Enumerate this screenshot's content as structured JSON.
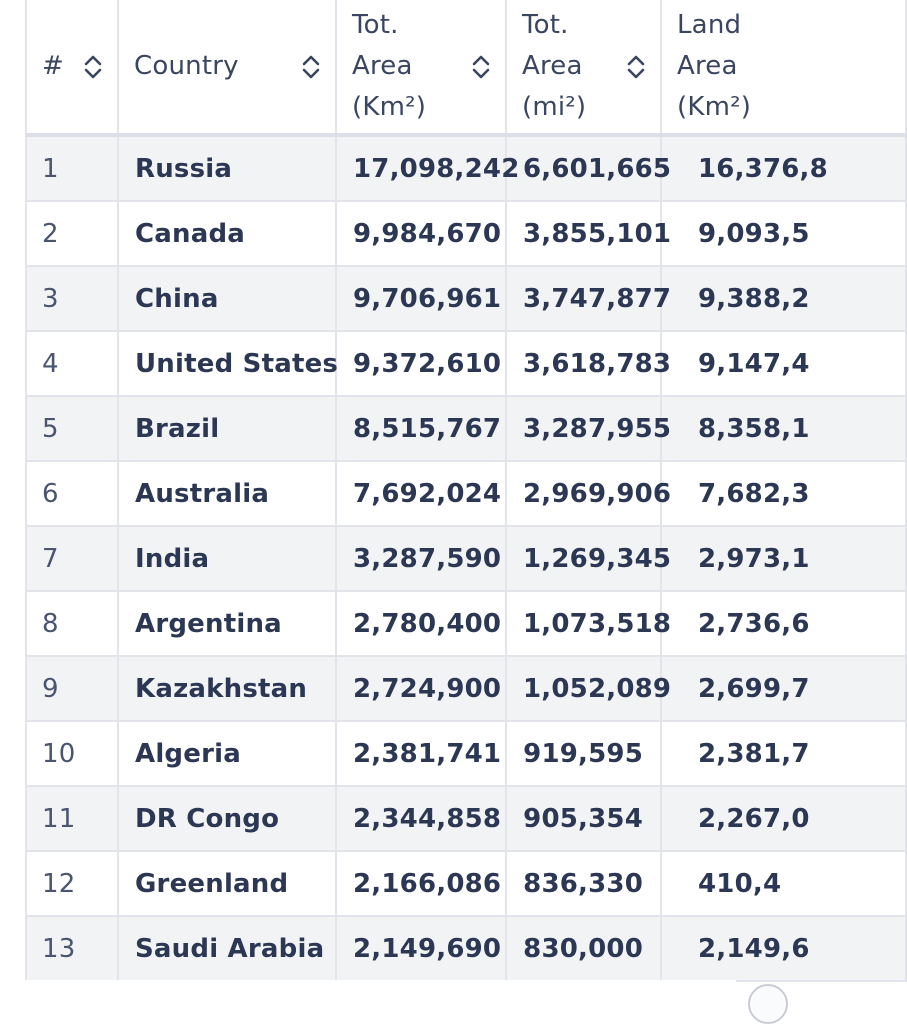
{
  "table": {
    "columns": [
      {
        "label_lines": [
          "#"
        ],
        "sortable": true
      },
      {
        "label_lines": [
          "Country"
        ],
        "sortable": true
      },
      {
        "label_lines": [
          "Tot.",
          "Area",
          "(Km²)"
        ],
        "sortable": true
      },
      {
        "label_lines": [
          "Tot.",
          "Area",
          "(mi²)"
        ],
        "sortable": true
      },
      {
        "label_lines": [
          "Land",
          "Area",
          "(Km²)"
        ],
        "sortable": true
      }
    ],
    "rows": [
      {
        "rank": "1",
        "country": "Russia",
        "tot_km2": "17,098,242",
        "tot_mi2": "6,601,665",
        "land_km2": "16,376,8"
      },
      {
        "rank": "2",
        "country": "Canada",
        "tot_km2": "9,984,670",
        "tot_mi2": "3,855,101",
        "land_km2": "9,093,5"
      },
      {
        "rank": "3",
        "country": "China",
        "tot_km2": "9,706,961",
        "tot_mi2": "3,747,877",
        "land_km2": "9,388,2"
      },
      {
        "rank": "4",
        "country": "United States",
        "tot_km2": "9,372,610",
        "tot_mi2": "3,618,783",
        "land_km2": "9,147,4"
      },
      {
        "rank": "5",
        "country": "Brazil",
        "tot_km2": "8,515,767",
        "tot_mi2": "3,287,955",
        "land_km2": "8,358,1"
      },
      {
        "rank": "6",
        "country": "Australia",
        "tot_km2": "7,692,024",
        "tot_mi2": "2,969,906",
        "land_km2": "7,682,3"
      },
      {
        "rank": "7",
        "country": "India",
        "tot_km2": "3,287,590",
        "tot_mi2": "1,269,345",
        "land_km2": "2,973,1"
      },
      {
        "rank": "8",
        "country": "Argentina",
        "tot_km2": "2,780,400",
        "tot_mi2": "1,073,518",
        "land_km2": "2,736,6"
      },
      {
        "rank": "9",
        "country": "Kazakhstan",
        "tot_km2": "2,724,900",
        "tot_mi2": "1,052,089",
        "land_km2": "2,699,7"
      },
      {
        "rank": "10",
        "country": "Algeria",
        "tot_km2": "2,381,741",
        "tot_mi2": "919,595",
        "land_km2": "2,381,7"
      },
      {
        "rank": "11",
        "country": "DR Congo",
        "tot_km2": "2,344,858",
        "tot_mi2": "905,354",
        "land_km2": "2,267,0"
      },
      {
        "rank": "12",
        "country": "Greenland",
        "tot_km2": "2,166,086",
        "tot_mi2": "836,330",
        "land_km2": "410,4"
      },
      {
        "rank": "13",
        "country": "Saudi Arabia",
        "tot_km2": "2,149,690",
        "tot_mi2": "830,000",
        "land_km2": "2,149,6"
      }
    ]
  },
  "icons": {
    "sort": "sort-updown-icon",
    "corner_button": "circle-button-icon"
  },
  "colors": {
    "text": "#2c3754",
    "border": "#e2e4e9",
    "stripe": "#f2f3f5",
    "icon": "#3a4660"
  }
}
